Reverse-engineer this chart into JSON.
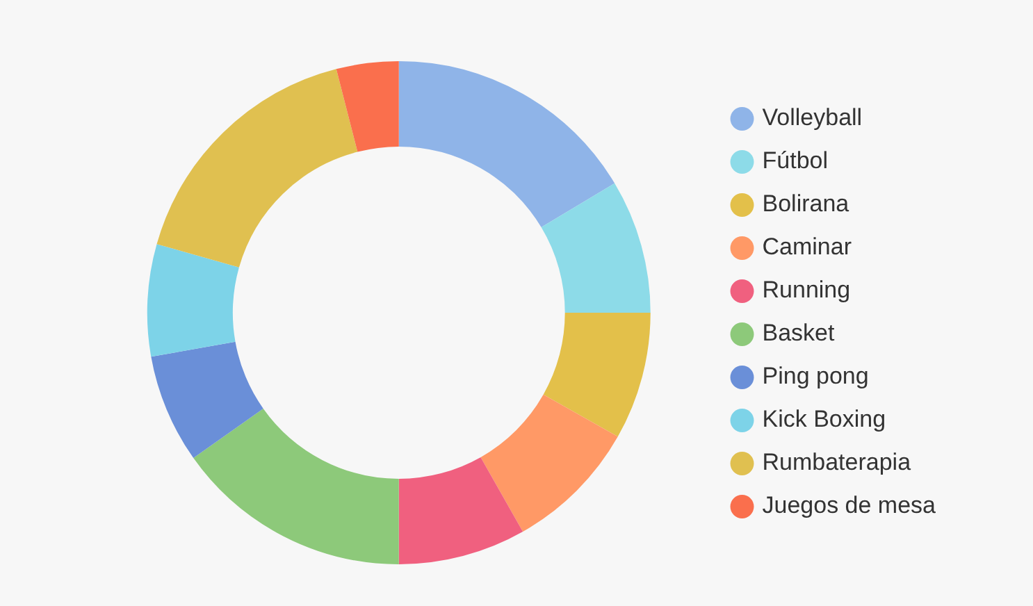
{
  "chart_data": {
    "type": "donut",
    "categories": [
      "Volleyball",
      "Fútbol",
      "Bolirana",
      "Caminar",
      "Running",
      "Basket",
      "Ping pong",
      "Kick Boxing",
      "Rumbaterapia",
      "Juegos de mesa"
    ],
    "values": [
      16.4,
      8.6,
      8.2,
      8.6,
      8.2,
      15.2,
      7,
      7.2,
      16.6,
      4
    ],
    "colors": [
      "#8fb4e8",
      "#8ddbe8",
      "#e3c04a",
      "#ff9966",
      "#f0607f",
      "#8dc97a",
      "#6a8fd8",
      "#7dd3e8",
      "#e0c050",
      "#fa6f4d"
    ],
    "legend": "right"
  }
}
